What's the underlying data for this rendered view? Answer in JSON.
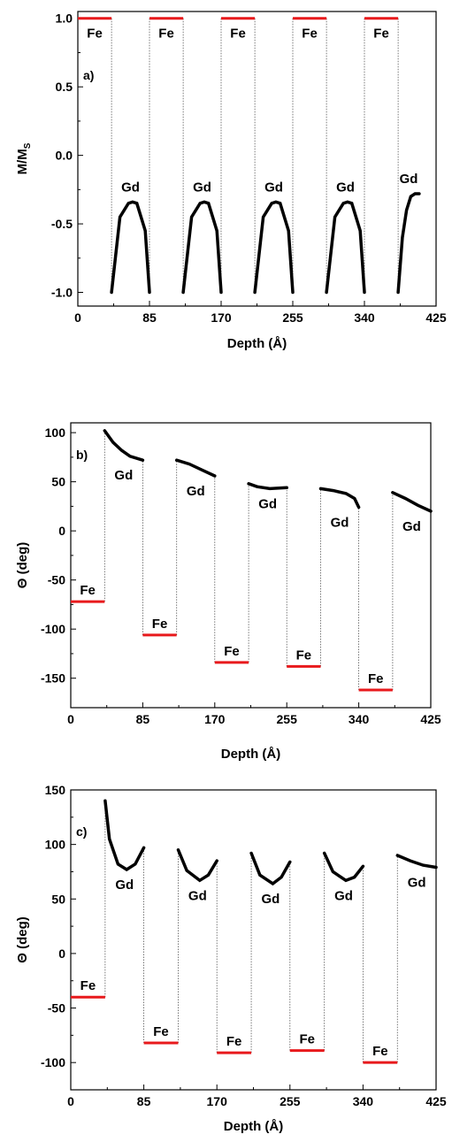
{
  "chart_data": [
    {
      "type": "line",
      "panel_label": "a)",
      "xlabel": "Depth (Å)",
      "ylabel": "M/M",
      "ylabel_sub": "S",
      "xlim": [
        0,
        425
      ],
      "ylim": [
        -1.1,
        1.05
      ],
      "xticks": [
        0,
        85,
        170,
        255,
        340,
        425
      ],
      "yticks": [
        1.0,
        0.5,
        0.0,
        -0.5,
        -1.0
      ],
      "ytick_labels": [
        "1.0",
        "0.5",
        "0.0",
        "-0.5",
        "-1.0"
      ],
      "fe_segments": [
        {
          "label": "Fe",
          "x": [
            0,
            40
          ],
          "y": 1.0
        },
        {
          "label": "Fe",
          "x": [
            85,
            125
          ],
          "y": 1.0
        },
        {
          "label": "Fe",
          "x": [
            170,
            210
          ],
          "y": 1.0
        },
        {
          "label": "Fe",
          "x": [
            255,
            295
          ],
          "y": 1.0
        },
        {
          "label": "Fe",
          "x": [
            340,
            380
          ],
          "y": 1.0
        }
      ],
      "gd_curves": [
        {
          "label": "Gd",
          "x": [
            40,
            50,
            60,
            65,
            70,
            80,
            85
          ],
          "y": [
            -1.0,
            -0.45,
            -0.35,
            -0.34,
            -0.35,
            -0.55,
            -1.0
          ]
        },
        {
          "label": "Gd",
          "x": [
            125,
            135,
            145,
            150,
            155,
            165,
            170
          ],
          "y": [
            -1.0,
            -0.45,
            -0.35,
            -0.34,
            -0.35,
            -0.55,
            -1.0
          ]
        },
        {
          "label": "Gd",
          "x": [
            210,
            220,
            230,
            235,
            240,
            250,
            255
          ],
          "y": [
            -1.0,
            -0.45,
            -0.35,
            -0.34,
            -0.35,
            -0.55,
            -1.0
          ]
        },
        {
          "label": "Gd",
          "x": [
            295,
            305,
            315,
            320,
            325,
            335,
            340
          ],
          "y": [
            -1.0,
            -0.45,
            -0.35,
            -0.34,
            -0.35,
            -0.55,
            -1.0
          ]
        },
        {
          "label": "Gd",
          "x": [
            380,
            385,
            390,
            395,
            400,
            405
          ],
          "y": [
            -1.0,
            -0.6,
            -0.4,
            -0.3,
            -0.28,
            -0.28
          ]
        }
      ]
    },
    {
      "type": "line",
      "panel_label": "b)",
      "xlabel": "Depth (Å)",
      "ylabel": "Θ (deg)",
      "xlim": [
        0,
        425
      ],
      "ylim": [
        -180,
        110
      ],
      "xticks": [
        0,
        85,
        170,
        255,
        340,
        425
      ],
      "yticks": [
        100,
        50,
        0,
        -50,
        -100,
        -150
      ],
      "ytick_labels": [
        "100",
        "50",
        "0",
        "-50",
        "-100",
        "-150"
      ],
      "fe_segments": [
        {
          "label": "Fe",
          "x": [
            0,
            40
          ],
          "y": -72
        },
        {
          "label": "Fe",
          "x": [
            85,
            125
          ],
          "y": -106
        },
        {
          "label": "Fe",
          "x": [
            170,
            210
          ],
          "y": -134
        },
        {
          "label": "Fe",
          "x": [
            255,
            295
          ],
          "y": -138
        },
        {
          "label": "Fe",
          "x": [
            340,
            380
          ],
          "y": -162
        }
      ],
      "gd_curves": [
        {
          "label": "Gd",
          "x": [
            40,
            50,
            60,
            70,
            85
          ],
          "y": [
            102,
            90,
            82,
            76,
            72
          ]
        },
        {
          "label": "Gd",
          "x": [
            125,
            140,
            155,
            170
          ],
          "y": [
            72,
            68,
            62,
            56
          ]
        },
        {
          "label": "Gd",
          "x": [
            210,
            220,
            235,
            255
          ],
          "y": [
            48,
            45,
            43,
            44
          ]
        },
        {
          "label": "Gd",
          "x": [
            295,
            310,
            325,
            335,
            340
          ],
          "y": [
            43,
            41,
            38,
            33,
            24
          ]
        },
        {
          "label": "Gd",
          "x": [
            380,
            395,
            410,
            425
          ],
          "y": [
            39,
            33,
            26,
            20
          ]
        }
      ]
    },
    {
      "type": "line",
      "panel_label": "c)",
      "xlabel": "Depth (Å)",
      "ylabel": "Θ (deg)",
      "xlim": [
        0,
        425
      ],
      "ylim": [
        -125,
        150
      ],
      "xticks": [
        0,
        85,
        170,
        255,
        340,
        425
      ],
      "yticks": [
        150,
        100,
        50,
        0,
        -50,
        -100
      ],
      "ytick_labels": [
        "150",
        "100",
        "50",
        "0",
        "-50",
        "-100"
      ],
      "fe_segments": [
        {
          "label": "Fe",
          "x": [
            0,
            40
          ],
          "y": -40
        },
        {
          "label": "Fe",
          "x": [
            85,
            125
          ],
          "y": -82
        },
        {
          "label": "Fe",
          "x": [
            170,
            210
          ],
          "y": -91
        },
        {
          "label": "Fe",
          "x": [
            255,
            295
          ],
          "y": -89
        },
        {
          "label": "Fe",
          "x": [
            340,
            380
          ],
          "y": -100
        }
      ],
      "gd_curves": [
        {
          "label": "Gd",
          "x": [
            40,
            45,
            55,
            65,
            75,
            85
          ],
          "y": [
            140,
            105,
            82,
            77,
            82,
            97
          ]
        },
        {
          "label": "Gd",
          "x": [
            125,
            135,
            150,
            160,
            170
          ],
          "y": [
            95,
            76,
            67,
            72,
            85
          ]
        },
        {
          "label": "Gd",
          "x": [
            210,
            220,
            235,
            245,
            255
          ],
          "y": [
            92,
            72,
            64,
            70,
            84
          ]
        },
        {
          "label": "Gd",
          "x": [
            295,
            305,
            320,
            330,
            340
          ],
          "y": [
            92,
            75,
            67,
            70,
            80
          ]
        },
        {
          "label": "Gd",
          "x": [
            380,
            395,
            410,
            425
          ],
          "y": [
            90,
            85,
            81,
            79
          ]
        }
      ]
    }
  ]
}
